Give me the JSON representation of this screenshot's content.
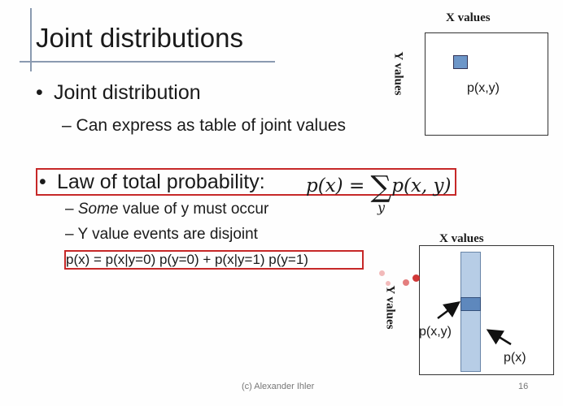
{
  "slide": {
    "title": "Joint distributions",
    "bullet1": "Joint distribution",
    "bullet1_sub": "Can express as table of joint values",
    "law_label": "Law of total probability:",
    "law_formula_lhs": "p(x) = ",
    "law_formula_sigma": "∑",
    "law_formula_rhs": "p(x, y)",
    "law_formula_sub": "y",
    "sub_bullets": [
      {
        "emph": "Some",
        "text": " value of y must occur"
      },
      {
        "text": "Y value events are disjoint"
      }
    ],
    "equation": "p(x) = p(x|y=0) p(y=0) + p(x|y=1) p(y=1)",
    "footer": "(c) Alexander Ihler",
    "page_number": "16",
    "bullet_symbol": "•",
    "dash_symbol": "–"
  },
  "figure_top": {
    "x_label": "X values",
    "y_label": "Y values",
    "cell_label": "p(x,y)"
  },
  "figure_bottom": {
    "x_label": "X values",
    "y_label": "Y values",
    "cell_label": "p(x,y)",
    "column_label": "p(x)"
  },
  "colors": {
    "highlight_box": "#c62828",
    "cell_fill": "#6d96c8",
    "column_fill": "#b7cde6",
    "rule_line": "#8a9ab0"
  }
}
